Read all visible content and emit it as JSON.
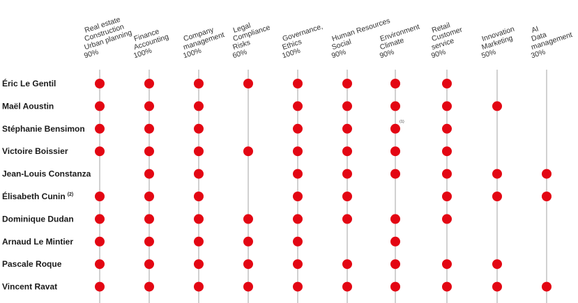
{
  "colors": {
    "dot": "#e30613",
    "line": "#8c8c8c",
    "text": "#1a1a1a"
  },
  "columns": [
    {
      "lines": [
        "Real estate",
        "Construction",
        "Urban planning",
        "90%"
      ]
    },
    {
      "lines": [
        "Finance",
        "Accounting",
        "100%"
      ]
    },
    {
      "lines": [
        "Company",
        "management",
        "100%"
      ]
    },
    {
      "lines": [
        "Legal",
        "Compliance",
        "Risks",
        "60%"
      ]
    },
    {
      "lines": [
        "Governance,",
        "Ethics",
        "100%"
      ]
    },
    {
      "lines": [
        "Human Resources",
        "Social",
        "90%"
      ]
    },
    {
      "lines": [
        "Environment",
        "Climate",
        "90%"
      ]
    },
    {
      "lines": [
        "Retail",
        "Customer",
        "service",
        "90%"
      ]
    },
    {
      "lines": [
        "Innovation",
        "Marketing",
        "50%"
      ]
    },
    {
      "lines": [
        "AI",
        "Data",
        "management",
        "30%"
      ]
    }
  ],
  "rows": [
    {
      "name": "Éric Le Gentil",
      "sup": "",
      "marks": [
        1,
        1,
        1,
        1,
        1,
        1,
        1,
        1,
        0,
        0
      ]
    },
    {
      "name": "Maël Aoustin",
      "sup": "",
      "marks": [
        1,
        1,
        1,
        0,
        1,
        1,
        1,
        1,
        1,
        0
      ]
    },
    {
      "name": "Stéphanie Bensimon",
      "sup": "",
      "marks": [
        1,
        1,
        1,
        0,
        1,
        1,
        1,
        1,
        0,
        0
      ]
    },
    {
      "name": "Victoire Boissier",
      "sup": "",
      "marks": [
        1,
        1,
        1,
        1,
        1,
        1,
        1,
        1,
        0,
        0
      ]
    },
    {
      "name": "Jean-Louis Constanza",
      "sup": "",
      "marks": [
        0,
        1,
        1,
        0,
        1,
        1,
        1,
        1,
        1,
        1
      ]
    },
    {
      "name": "Élisabeth Cunin",
      "sup": "(2)",
      "marks": [
        1,
        1,
        1,
        0,
        1,
        1,
        0,
        1,
        1,
        1
      ]
    },
    {
      "name": "Dominique Dudan",
      "sup": "",
      "marks": [
        1,
        1,
        1,
        1,
        1,
        1,
        1,
        1,
        0,
        0
      ]
    },
    {
      "name": "Arnaud Le Mintier",
      "sup": "",
      "marks": [
        1,
        1,
        1,
        1,
        1,
        0,
        1,
        0,
        0,
        0
      ]
    },
    {
      "name": "Pascale Roque",
      "sup": "",
      "marks": [
        1,
        1,
        1,
        1,
        1,
        1,
        1,
        1,
        1,
        0
      ]
    },
    {
      "name": "Vincent Ravat",
      "sup": "",
      "marks": [
        1,
        1,
        1,
        1,
        1,
        1,
        1,
        1,
        1,
        1
      ]
    }
  ],
  "notes": [
    {
      "text": "(1)",
      "row": 2,
      "col": 6
    }
  ]
}
